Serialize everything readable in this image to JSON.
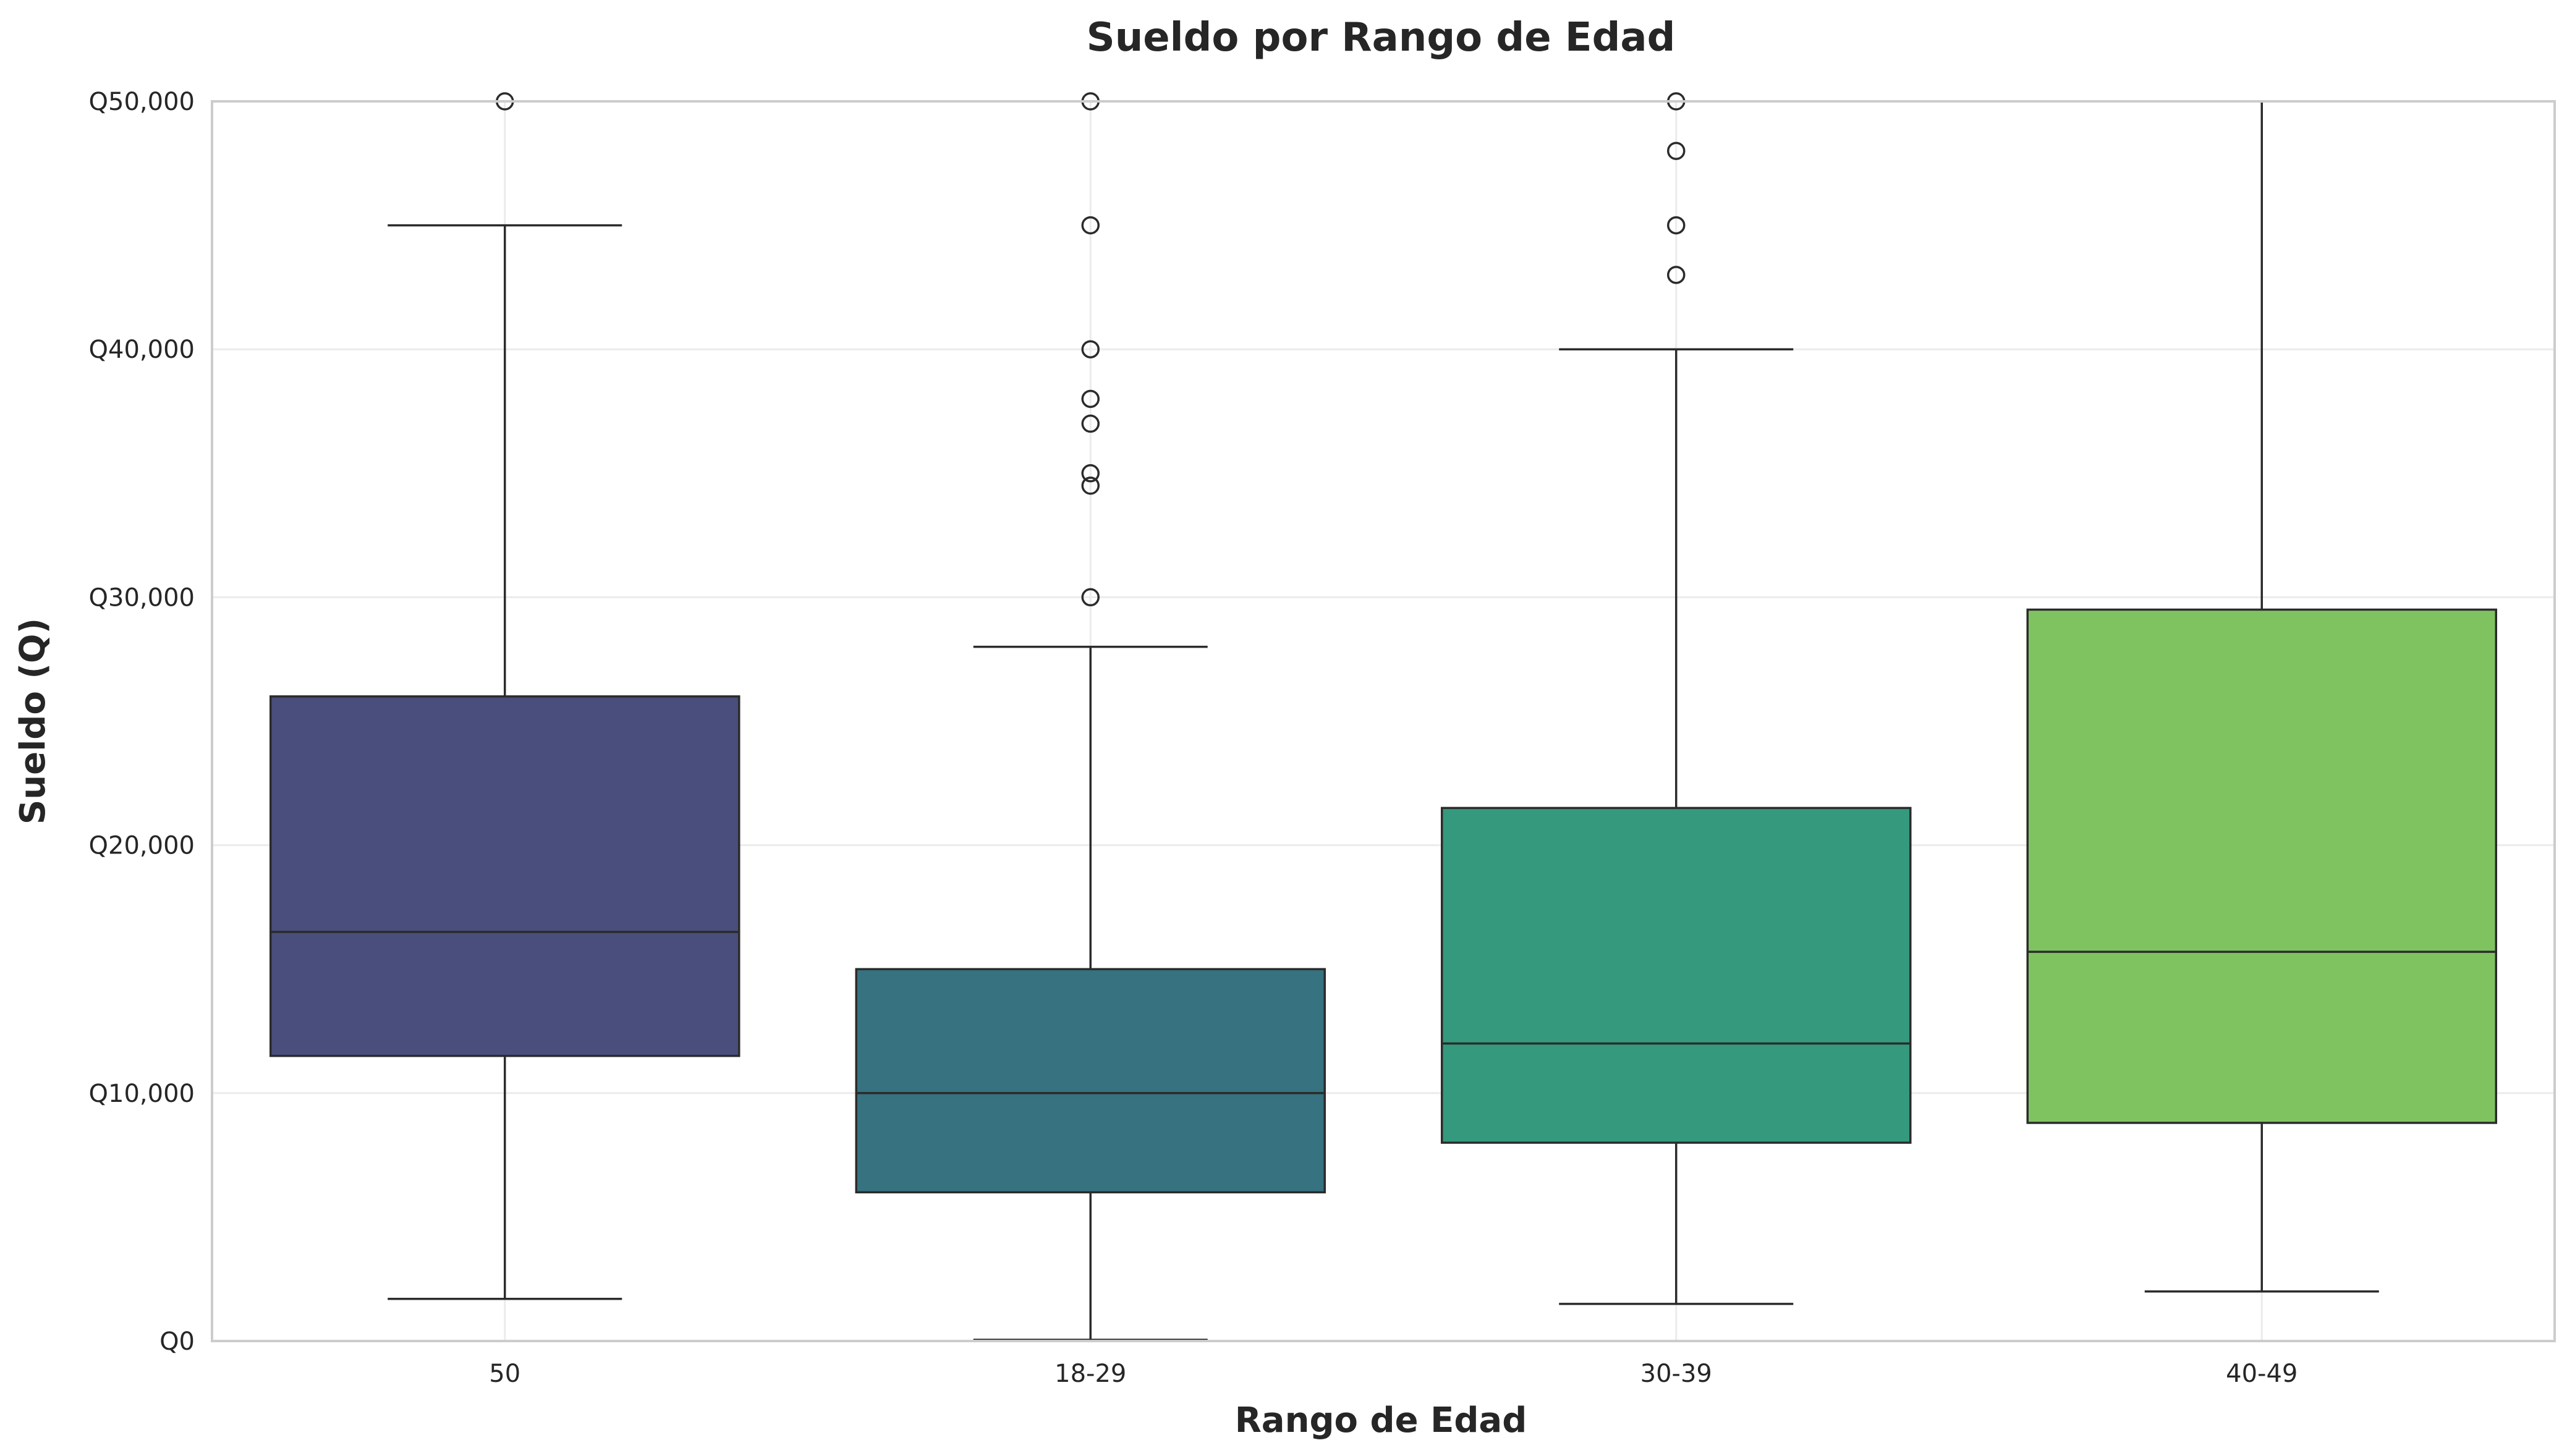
{
  "chart_data": {
    "type": "box",
    "title": "Sueldo por Rango de Edad",
    "xlabel": "Rango de Edad",
    "ylabel": "Sueldo (Q)",
    "ylim": [
      0,
      50000
    ],
    "y_ticks": [
      0,
      10000,
      20000,
      30000,
      40000,
      50000
    ],
    "y_tick_labels": [
      "Q0",
      "Q10,000",
      "Q20,000",
      "Q30,000",
      "Q40,000",
      "Q50,000"
    ],
    "grid": true,
    "categories": [
      "50",
      "18-29",
      "30-39",
      "40-49"
    ],
    "boxes": [
      {
        "category": "50",
        "whisker_low": 1700,
        "q1": 11500,
        "median": 16500,
        "q3": 26000,
        "whisker_high": 45000,
        "outliers": [
          50000
        ],
        "color": "#4A4E7C"
      },
      {
        "category": "18-29",
        "whisker_low": 50,
        "q1": 6000,
        "median": 10000,
        "q3": 15000,
        "whisker_high": 28000,
        "outliers": [
          30000,
          34500,
          35000,
          37000,
          38000,
          40000,
          45000,
          50000
        ],
        "color": "#367280"
      },
      {
        "category": "30-39",
        "whisker_low": 1500,
        "q1": 8000,
        "median": 12000,
        "q3": 21500,
        "whisker_high": 40000,
        "outliers": [
          43000,
          45000,
          48000,
          50000
        ],
        "color": "#35997D"
      },
      {
        "category": "40-49",
        "whisker_low": 2000,
        "q1": 8800,
        "median": 15700,
        "q3": 29500,
        "whisker_high": 50000,
        "outliers": [],
        "color": "#7FC361"
      }
    ]
  }
}
